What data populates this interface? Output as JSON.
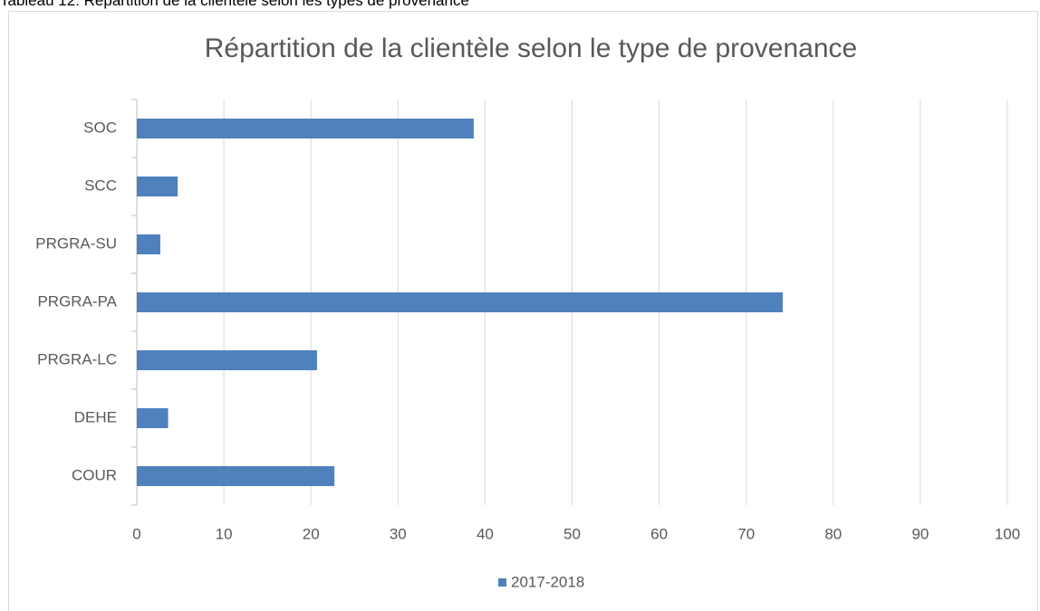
{
  "chart_data": {
    "type": "bar",
    "orientation": "horizontal",
    "caption": "Tableau 12: Répartition de la clientèle selon les types de provenance",
    "title": "Répartition de la clientèle selon le type de provenance",
    "categories": [
      "COUR",
      "DEHE",
      "PRGRA-LC",
      "PRGRA-PA",
      "PRGRA-SU",
      "SCC",
      "SOC"
    ],
    "series": [
      {
        "name": "2017-2018",
        "color": "#4f81bd",
        "values": [
          22.7,
          3.6,
          20.7,
          74.2,
          2.7,
          4.7,
          38.7
        ]
      }
    ],
    "xlim": [
      0,
      100
    ],
    "xticks": [
      0,
      10,
      20,
      30,
      40,
      50,
      60,
      70,
      80,
      90,
      100
    ],
    "grid": true,
    "legend": "bottom"
  }
}
